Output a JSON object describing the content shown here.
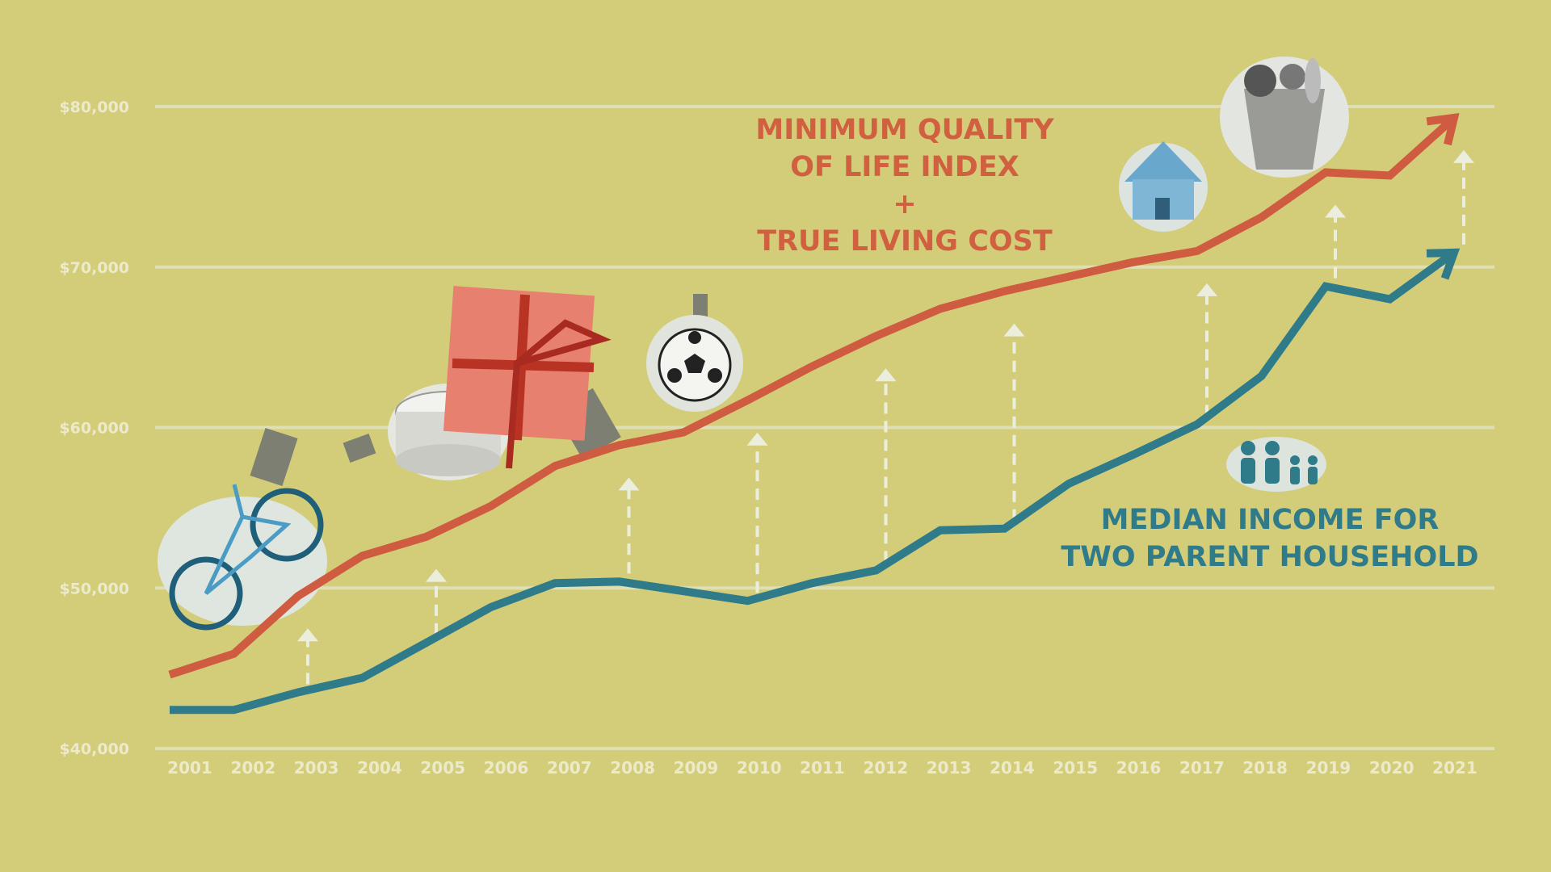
{
  "chart_data": {
    "type": "line",
    "title": "",
    "xlabel": "",
    "ylabel": "",
    "x": [
      "2001",
      "2002",
      "2003",
      "2004",
      "2005",
      "2006",
      "2007",
      "2008",
      "2009",
      "2010",
      "2011",
      "2012",
      "2013",
      "2014",
      "2015",
      "2016",
      "2017",
      "2018",
      "2019",
      "2020",
      "2021"
    ],
    "ylim": [
      40000,
      80000
    ],
    "yticks": [
      "$40,000",
      "$50,000",
      "$60,000",
      "$70,000",
      "$80,000"
    ],
    "ytick_values": [
      40000,
      50000,
      60000,
      70000,
      80000
    ],
    "grid": true,
    "series": [
      {
        "name": "Minimum Quality of Life Index + True Living Cost",
        "color": "#cf5b40",
        "values": [
          44600,
          45900,
          49500,
          52000,
          53200,
          55100,
          57600,
          58900,
          59700,
          61700,
          63800,
          65700,
          67400,
          68500,
          69400,
          70300,
          71000,
          73100,
          75900,
          75700,
          79300
        ]
      },
      {
        "name": "Median Income for Two Parent Household",
        "color": "#2f7b8a",
        "values": [
          42400,
          42400,
          43500,
          44400,
          46600,
          48800,
          50300,
          50400,
          49800,
          49200,
          50300,
          51100,
          53600,
          53700,
          56500,
          58300,
          60200,
          63200,
          68800,
          68000,
          70900
        ]
      }
    ],
    "gap_arrow_years": [
      "2003",
      "2005",
      "2008",
      "2010",
      "2012",
      "2014",
      "2017",
      "2019",
      "2021"
    ],
    "annotations": {
      "red_label": [
        "MINIMUM QUALITY",
        "OF LIFE INDEX",
        "+",
        "TRUE LIVING COST"
      ],
      "teal_label": [
        "MEDIAN INCOME FOR",
        "TWO PARENT HOUSEHOLD"
      ]
    }
  },
  "illustrations": [
    "bicycle-icon",
    "price-tag-icon",
    "birthday-cake-icon",
    "gift-box-icon",
    "soccer-ball-icon",
    "house-icon",
    "grocery-bag-icon",
    "family-icon"
  ],
  "colors": {
    "background": "#d3cd79",
    "grid": "#e3e4c4",
    "red": "#cf5b40",
    "teal": "#2f7b8a"
  }
}
